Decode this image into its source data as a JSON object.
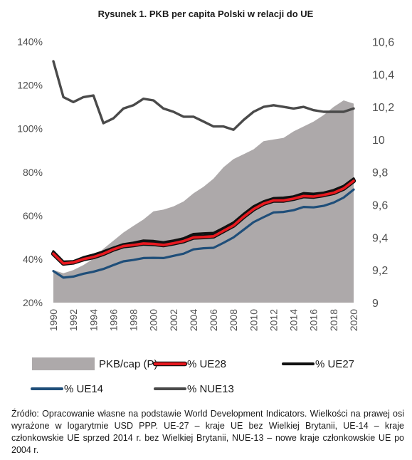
{
  "chart_data": {
    "type": "line",
    "title": "Rysunek 1. PKB per capita Polski w relacji do UE",
    "x": [
      1990,
      1991,
      1992,
      1993,
      1994,
      1995,
      1996,
      1997,
      1998,
      1999,
      2000,
      2001,
      2002,
      2003,
      2004,
      2005,
      2006,
      2007,
      2008,
      2009,
      2010,
      2011,
      2012,
      2013,
      2014,
      2015,
      2016,
      2017,
      2018,
      2019,
      2020
    ],
    "x_ticks": [
      1990,
      1992,
      1994,
      1996,
      1998,
      2000,
      2002,
      2004,
      2006,
      2008,
      2010,
      2012,
      2014,
      2016,
      2018,
      2020
    ],
    "y_left": {
      "ticks": [
        "20%",
        "40%",
        "60%",
        "80%",
        "100%",
        "120%",
        "140%"
      ],
      "ylim": [
        20,
        140
      ],
      "unit": "%"
    },
    "y_right": {
      "ticks": [
        "9",
        "9,2",
        "9,4",
        "9,6",
        "9,8",
        "10",
        "10,2",
        "10,4",
        "10,6"
      ],
      "ylim": [
        9,
        10.6
      ],
      "scale": "linear"
    },
    "area": {
      "name": "PKB/cap (P)",
      "axis": "right",
      "color": "#ada9aa",
      "values": [
        9.2,
        9.18,
        9.2,
        9.23,
        9.27,
        9.33,
        9.38,
        9.43,
        9.47,
        9.51,
        9.56,
        9.57,
        9.59,
        9.62,
        9.67,
        9.71,
        9.76,
        9.83,
        9.88,
        9.91,
        9.94,
        9.99,
        10.0,
        10.01,
        10.05,
        10.08,
        10.11,
        10.15,
        10.2,
        10.24,
        10.22
      ]
    },
    "series": [
      {
        "name": "% UE28",
        "axis": "left",
        "color": "#e8191f",
        "values": [
          42.5,
          38.0,
          38.5,
          40.0,
          41.0,
          42.5,
          44.5,
          46.0,
          46.5,
          47.2,
          47.0,
          46.5,
          47.3,
          48.3,
          50.0,
          50.2,
          50.5,
          53.0,
          55.5,
          59.5,
          63.0,
          65.5,
          67.0,
          67.0,
          67.8,
          69.0,
          68.8,
          69.5,
          70.5,
          72.5,
          76.0
        ]
      },
      {
        "name": "% UE27",
        "axis": "left",
        "color": "#111111",
        "values": [
          43.5,
          38.8,
          39.0,
          40.8,
          42.0,
          43.5,
          45.2,
          46.8,
          47.5,
          48.5,
          48.3,
          47.7,
          48.5,
          49.5,
          51.5,
          51.8,
          52.0,
          54.3,
          56.8,
          60.7,
          64.2,
          66.5,
          68.0,
          68.2,
          68.8,
          70.3,
          70.0,
          70.5,
          71.7,
          73.6,
          77.0
        ]
      },
      {
        "name": "% UE14",
        "axis": "left",
        "color": "#1f4e79",
        "values": [
          34.5,
          31.5,
          32.0,
          33.3,
          34.2,
          35.5,
          37.3,
          39.0,
          39.6,
          40.5,
          40.6,
          40.5,
          41.5,
          42.5,
          44.5,
          45.0,
          45.2,
          47.5,
          50.0,
          53.5,
          57.0,
          59.3,
          61.5,
          61.7,
          62.5,
          64.0,
          63.8,
          64.5,
          66.0,
          68.3,
          72.0
        ]
      },
      {
        "name": "% NUE13",
        "axis": "right",
        "color": "#4a4a4a",
        "values": [
          10.48,
          10.26,
          10.23,
          10.26,
          10.27,
          10.1,
          10.13,
          10.19,
          10.21,
          10.25,
          10.24,
          10.19,
          10.17,
          10.14,
          10.14,
          10.11,
          10.08,
          10.08,
          10.06,
          10.12,
          10.17,
          10.2,
          10.21,
          10.2,
          10.19,
          10.2,
          10.18,
          10.17,
          10.17,
          10.17,
          10.19
        ]
      }
    ],
    "legend": [
      "PKB/cap (P)",
      "% UE28",
      "% UE27",
      "% UE14",
      "% NUE13"
    ],
    "legend_position": "bottom",
    "grid": false
  },
  "source_note": "Źródło: Opracowanie własne na podstawie World Development Indicators. Wielkości na prawej osi wyrażone w logarytmie USD PPP. UE-27 – kraje UE bez Wielkiej Brytanii, UE-14 – kraje członkowskie UE sprzed 2014 r. bez Wielkiej Brytanii, NUE-13 – nowe kraje członkowskie UE po 2004 r."
}
